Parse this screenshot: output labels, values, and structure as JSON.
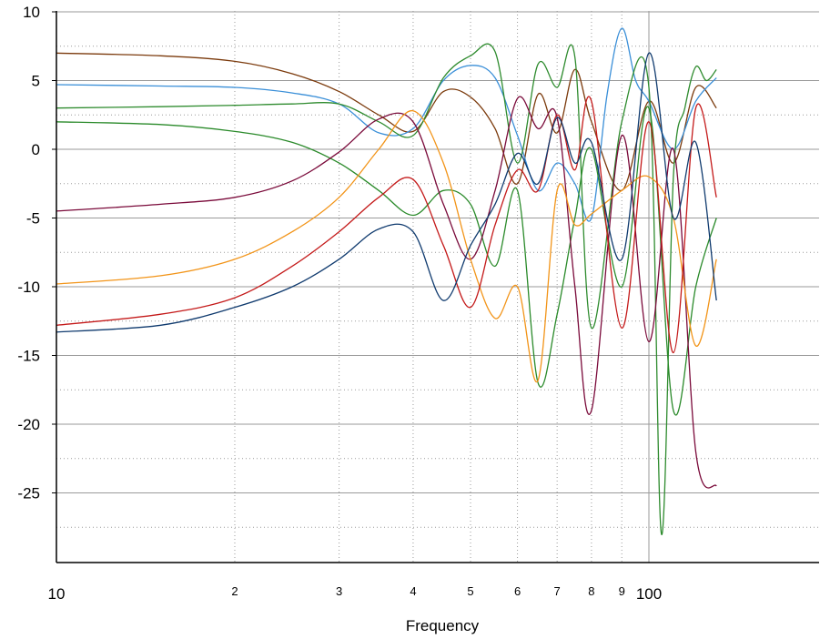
{
  "chart_data": {
    "type": "line",
    "title": "",
    "xlabel": "Frequency",
    "ylabel": "",
    "x_scale": "log",
    "xlim": [
      10,
      130
    ],
    "ylim": [
      -30,
      10
    ],
    "grid": true,
    "legend": "none",
    "x_major_ticks": [
      {
        "value": 10,
        "label": "10"
      },
      {
        "value": 100,
        "label": "100"
      }
    ],
    "x_minor_ticks": [
      {
        "value": 20,
        "label": "2"
      },
      {
        "value": 30,
        "label": "3"
      },
      {
        "value": 40,
        "label": "4"
      },
      {
        "value": 50,
        "label": "5"
      },
      {
        "value": 60,
        "label": "6"
      },
      {
        "value": 70,
        "label": "7"
      },
      {
        "value": 80,
        "label": "8"
      },
      {
        "value": 90,
        "label": "9"
      }
    ],
    "y_ticks": [
      10,
      5,
      0,
      -5,
      -10,
      -15,
      -20,
      -25
    ],
    "y_tick_labels": [
      "10",
      "5",
      "0",
      "-5",
      "-10",
      "-15",
      "-20",
      "-25"
    ],
    "series": [
      {
        "color": "#7b3a0c",
        "x": [
          10,
          15,
          20,
          25,
          30,
          35,
          40,
          45,
          50,
          55,
          60,
          65,
          70,
          75,
          80,
          90,
          100,
          110,
          120,
          130
        ],
        "y": [
          7,
          6.8,
          6.4,
          5.5,
          4.2,
          2.5,
          1.3,
          4.2,
          3.8,
          1.5,
          -2.5,
          4,
          1.2,
          5.8,
          2,
          -3,
          3.5,
          -1,
          4.5,
          3
        ]
      },
      {
        "color": "#3a8fd8",
        "x": [
          10,
          15,
          20,
          25,
          30,
          35,
          40,
          45,
          50,
          55,
          60,
          65,
          70,
          75,
          80,
          85,
          90,
          95,
          100,
          110,
          120,
          130
        ],
        "y": [
          4.7,
          4.6,
          4.5,
          4.1,
          3.3,
          1.2,
          1.5,
          5,
          6.1,
          5.2,
          1,
          -3,
          -1,
          -2.5,
          -5,
          4,
          8.8,
          5,
          3.5,
          0,
          3.5,
          5.2
        ]
      },
      {
        "color": "#2e8b2e",
        "x": [
          10,
          15,
          20,
          25,
          30,
          35,
          40,
          45,
          50,
          55,
          60,
          65,
          70,
          75,
          80,
          90,
          100,
          105,
          110,
          115,
          120,
          125,
          130
        ],
        "y": [
          3,
          3.1,
          3.2,
          3.3,
          3.3,
          2,
          1,
          5.2,
          6.8,
          7.1,
          -1,
          6.2,
          4.5,
          6.7,
          -13,
          2,
          4.5,
          -28,
          -2,
          3,
          6,
          5,
          5.8
        ]
      },
      {
        "color": "#2a8a2a",
        "x": [
          10,
          15,
          20,
          25,
          30,
          35,
          40,
          45,
          50,
          55,
          60,
          65,
          70,
          75,
          80,
          90,
          100,
          110,
          120,
          130
        ],
        "y": [
          2,
          1.8,
          1.3,
          0.5,
          -1,
          -3,
          -4.8,
          -3,
          -4,
          -8.5,
          -3,
          -17,
          -12,
          -5,
          0,
          -10,
          3,
          -19,
          -10,
          -5
        ]
      },
      {
        "color": "#7a0a3a",
        "x": [
          10,
          15,
          20,
          25,
          30,
          35,
          40,
          45,
          50,
          55,
          60,
          65,
          70,
          75,
          80,
          90,
          100,
          110,
          120,
          130
        ],
        "y": [
          -4.5,
          -4,
          -3.5,
          -2.3,
          -0.2,
          2.2,
          2,
          -4,
          -8,
          -3,
          3.7,
          1.5,
          2.3,
          -10,
          -19,
          1,
          -14,
          0,
          -22,
          -24.5
        ]
      },
      {
        "color": "#f29418",
        "x": [
          10,
          15,
          20,
          25,
          30,
          35,
          40,
          45,
          50,
          55,
          60,
          65,
          70,
          75,
          80,
          90,
          100,
          110,
          120,
          130
        ],
        "y": [
          -9.8,
          -9.2,
          -8,
          -6,
          -3.5,
          0,
          2.8,
          -1,
          -8,
          -12.3,
          -10,
          -16.8,
          -3,
          -5.5,
          -4.7,
          -3,
          -2,
          -5,
          -14.3,
          -8
        ]
      },
      {
        "color": "#c41a1a",
        "x": [
          10,
          15,
          20,
          25,
          30,
          35,
          40,
          45,
          50,
          55,
          60,
          65,
          70,
          75,
          80,
          90,
          100,
          110,
          120,
          130
        ],
        "y": [
          -12.8,
          -12,
          -10.8,
          -8.5,
          -6,
          -3.5,
          -2.2,
          -7,
          -11.5,
          -5.5,
          -1.5,
          -3,
          2.5,
          -1.5,
          3.5,
          -13,
          2,
          -14.8,
          3,
          -3.5
        ]
      },
      {
        "color": "#0f3a6e",
        "x": [
          10,
          15,
          20,
          25,
          30,
          35,
          40,
          45,
          50,
          55,
          60,
          65,
          70,
          75,
          80,
          90,
          100,
          110,
          120,
          130
        ],
        "y": [
          -13.3,
          -12.8,
          -11.5,
          -10,
          -8,
          -5.8,
          -6,
          -11,
          -7,
          -4,
          -0.3,
          -2.5,
          2.3,
          -1,
          0.5,
          -8,
          7,
          -5,
          0.5,
          -11
        ]
      }
    ]
  }
}
